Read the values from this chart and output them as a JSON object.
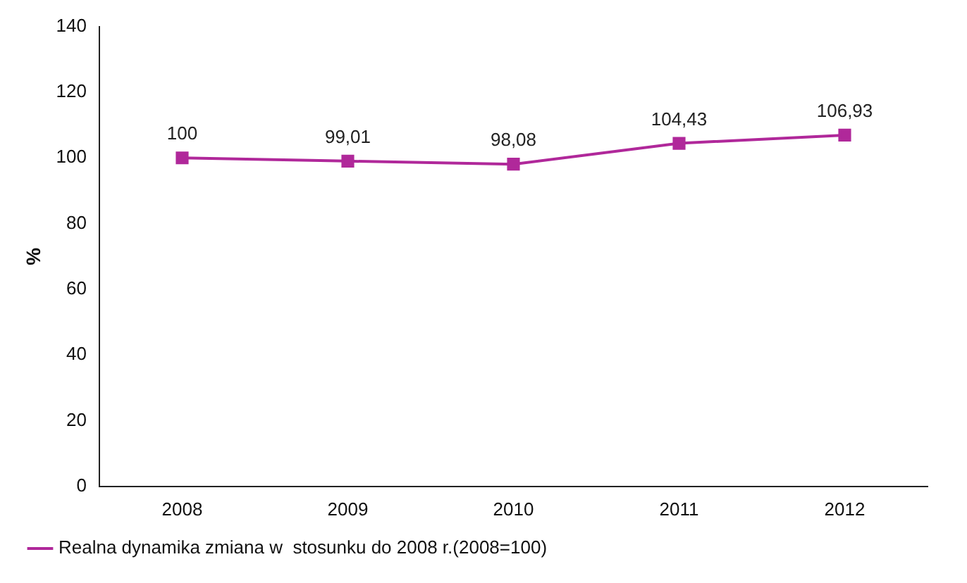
{
  "chart_data": {
    "type": "line",
    "ylabel": "%",
    "categories": [
      "2008",
      "2009",
      "2010",
      "2011",
      "2012"
    ],
    "series": [
      {
        "name": "Realna dynamika zmiana w  stosunku do 2008 r.(2008=100)",
        "color": "#b0289a",
        "values": [
          100,
          99.01,
          98.08,
          104.43,
          106.93
        ],
        "value_labels": [
          "100",
          "99,01",
          "98,08",
          "104,43",
          "106,93"
        ]
      }
    ],
    "ylim": [
      0,
      140
    ],
    "yticks": [
      0,
      20,
      40,
      60,
      80,
      100,
      120,
      140
    ],
    "grid": false,
    "legend": "bottom",
    "marker": "square",
    "line_style": "solid"
  }
}
